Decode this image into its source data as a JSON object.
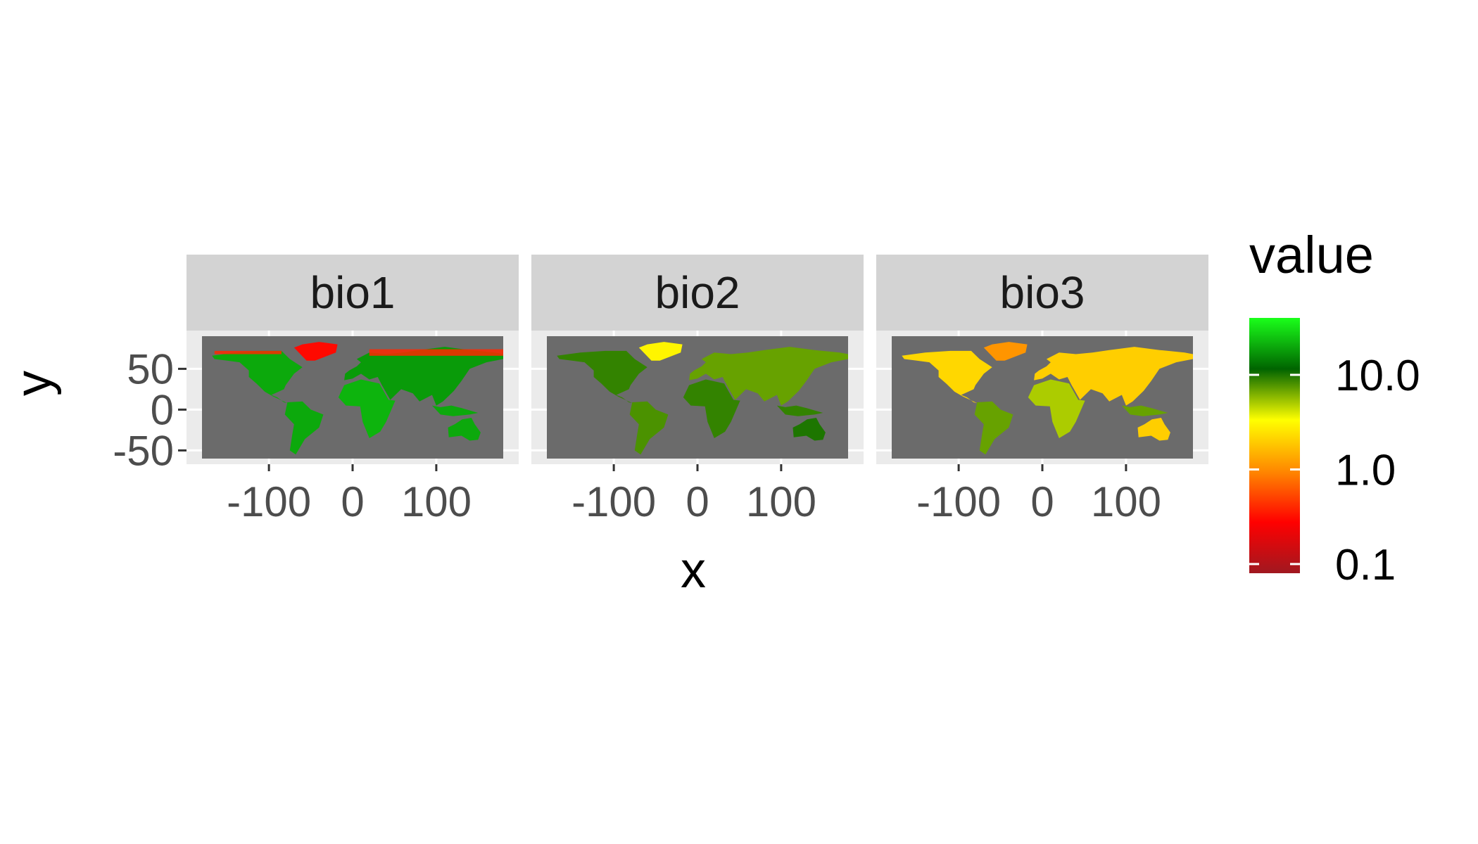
{
  "chart_data": {
    "type": "heatmap",
    "description_type": "faceted raster map (geom_raster with facet_wrap)",
    "x_axis": {
      "label": "x",
      "range": [
        -180,
        180
      ],
      "ticks": [
        -100,
        0,
        100
      ],
      "tick_labels": [
        "-100",
        "0",
        "100"
      ]
    },
    "y_axis": {
      "label": "y",
      "range": [
        -60,
        90
      ],
      "ticks": [
        50,
        0,
        -50
      ],
      "tick_labels": [
        "50",
        "0",
        "-50"
      ]
    },
    "panels": [
      {
        "name": "bio1",
        "dominant_value": 20,
        "north_edge_value": 0.5
      },
      {
        "name": "bio2",
        "dominant_value": 10
      },
      {
        "name": "bio3",
        "dominant_value": 2,
        "tropics_value": 10,
        "greenland_value": 1.5
      }
    ],
    "legend": {
      "title": "value",
      "scale": "log10",
      "limits": [
        0.08,
        40
      ],
      "breaks": [
        0.1,
        1.0,
        10.0
      ],
      "break_labels": [
        "0.1",
        "1.0",
        "10.0"
      ],
      "colors": [
        "#a01820",
        "#ff0000",
        "#ff8800",
        "#ffff00",
        "#006400",
        "#1aff1a"
      ],
      "position": "right"
    },
    "panel_background": "#6b6b6b",
    "strip_background": "#d3d3d3",
    "grid": true
  }
}
